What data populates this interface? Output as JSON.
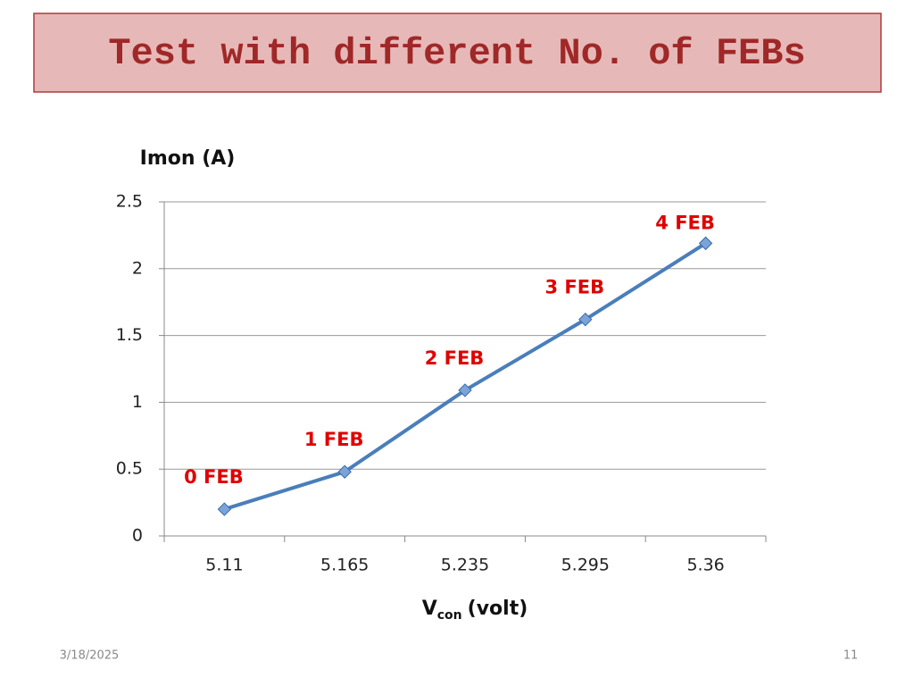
{
  "header": {
    "title": "Test with different No. of FEBs"
  },
  "chart_data": {
    "type": "line",
    "ylabel": "Imon (A)",
    "xlabel": {
      "main": "V",
      "sub": "con",
      "rest": "(volt)"
    },
    "categories": [
      "5.11",
      "5.165",
      "5.235",
      "5.295",
      "5.36"
    ],
    "values": [
      0.2,
      0.48,
      1.09,
      1.62,
      2.19
    ],
    "point_labels": [
      "0 FEB",
      "1 FEB",
      "2 FEB",
      "3 FEB",
      "4 FEB"
    ],
    "color": "#4a7ebb",
    "marker_color": "#7aa4d8",
    "label_color": "#e00000",
    "ylim": [
      0,
      2.5
    ],
    "yticks": [
      0,
      0.5,
      1,
      1.5,
      2,
      2.5
    ],
    "grid": true
  },
  "footer": {
    "date": "3/18/2025",
    "page": "11"
  }
}
